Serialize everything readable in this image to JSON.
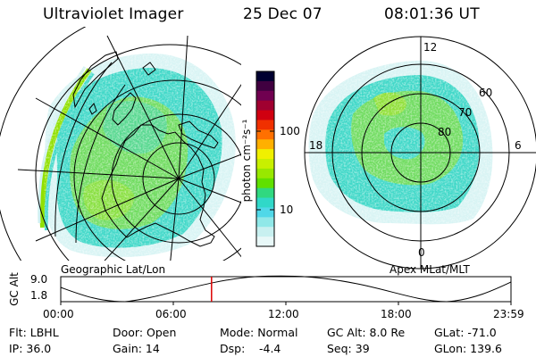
{
  "header": {
    "instrument": "Ultraviolet Imager",
    "date": "25 Dec 07",
    "time": "08:01:36 UT"
  },
  "colorbar": {
    "unit_label": "photon cm⁻²s⁻¹",
    "ticks": [
      "100",
      "10"
    ],
    "colors": [
      "#000030",
      "#400040",
      "#700050",
      "#a00030",
      "#d00010",
      "#f03000",
      "#ff7000",
      "#ffb000",
      "#f0f000",
      "#c8f000",
      "#98e800",
      "#60e000",
      "#30d880",
      "#30d8c8",
      "#50d8e8",
      "#90e8e8",
      "#c8f0f0",
      "#e8f8f8"
    ]
  },
  "left_panel": {
    "caption": "Geographic Lat/Lon"
  },
  "right_panel": {
    "caption": "Apex MLat/MLT",
    "mlt_labels": {
      "top": "12",
      "bottom": "0",
      "left": "18",
      "right": "6"
    },
    "lat_labels": [
      "60",
      "70",
      "80"
    ]
  },
  "altitude_plot": {
    "ylabel": "GC Alt",
    "yticks": [
      "9.0",
      "1.8"
    ],
    "xticks": [
      "00:00",
      "06:00",
      "12:00",
      "18:00",
      "23:59"
    ],
    "current_time_fraction": 0.335,
    "marker_color": "#dd0000"
  },
  "info": {
    "filter": "Flt: LBHL",
    "door": "Door: Open",
    "mode": "Mode: Normal",
    "gc_alt": "GC Alt: 8.0 Re",
    "glat": "GLat: -71.0",
    "ip": "IP: 36.0",
    "gain": "Gain: 14",
    "dsp_label": "Dsp:",
    "dsp_value": "-4.4",
    "seq": "Seq: 39",
    "glon": "GLon: 139.6"
  }
}
